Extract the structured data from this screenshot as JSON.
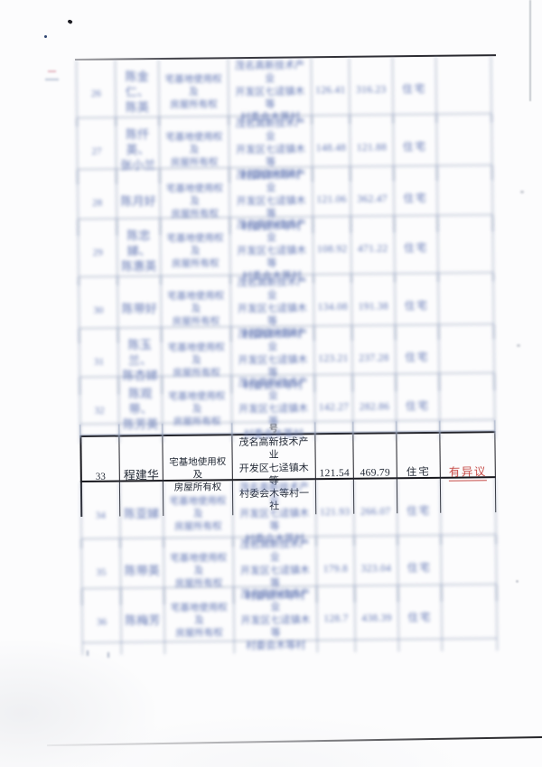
{
  "document": {
    "kind": "scanned-register-table",
    "note_colors": {
      "objection_red": "#c64a46",
      "focused_text": "#232a36",
      "blurred_text": "#5f74b2",
      "blurred_border": "#97a3bd",
      "sharp_border": "#17171d"
    }
  },
  "table": {
    "overflow_char": "号",
    "rows": [
      {
        "seq": "26",
        "name": "陈金仁、\n陈英",
        "rights": "宅基地使用权及\n房屋所有权",
        "location": "茂名高新技术产业\n开发区七迳镇木等\n村委会木等村",
        "area1": "126.41",
        "area2": "316.23",
        "use": "住宅",
        "remark": ""
      },
      {
        "seq": "27",
        "name": "陈仟英、\n张小兰",
        "rights": "宅基地使用权及\n房屋所有权",
        "location": "茂名高新技术产业\n开发区七迳镇木等\n村委会木等村",
        "area1": "148.48",
        "area2": "121.88",
        "use": "住宅",
        "remark": ""
      },
      {
        "seq": "28",
        "name": "陈月好",
        "rights": "宅基地使用权及\n房屋所有权",
        "location": "茂名高新技术产业\n开发区七迳镇木等\n村委会木等村",
        "area1": "121.06",
        "area2": "362.47",
        "use": "住宅",
        "remark": ""
      },
      {
        "seq": "29",
        "name": "陈忠娣、\n陈惠英",
        "rights": "宅基地使用权及\n房屋所有权",
        "location": "茂名高新技术产业\n开发区七迳镇木等\n村委会木等村",
        "area1": "108.92",
        "area2": "471.22",
        "use": "住宅",
        "remark": ""
      },
      {
        "seq": "30",
        "name": "陈带好",
        "rights": "宅基地使用权及\n房屋所有权",
        "location": "茂名高新技术产业\n开发区七迳镇木等\n村委会木等村",
        "area1": "134.08",
        "area2": "191.38",
        "use": "住宅",
        "remark": ""
      },
      {
        "seq": "31",
        "name": "陈玉兰、\n陈杏娣",
        "rights": "宅基地使用权及\n房屋所有权",
        "location": "茂名高新技术产业\n开发区七迳镇木等\n村委会木等村",
        "area1": "123.21",
        "area2": "237.28",
        "use": "住宅",
        "remark": ""
      },
      {
        "seq": "32",
        "name": "陈观带、\n陈芳英",
        "rights": "宅基地使用权及\n房屋所有权",
        "location": "茂名高新技术产业\n开发区七迳镇木等\n村委会木等村",
        "area1": "142.27",
        "area2": "282.86",
        "use": "住宅",
        "remark": ""
      },
      {
        "seq": "33",
        "name": "程建华",
        "rights": "宅基地使用权及\n房屋所有权",
        "location": "茂名高新技术产业\n开发区七迳镇木等\n村委会木等村一社",
        "area1": "121.54",
        "area2": "469.79",
        "use": "住宅",
        "remark": "有异议"
      },
      {
        "seq": "34",
        "name": "陈亚娣",
        "rights": "宅基地使用权及\n房屋所有权",
        "location": "茂名高新技术产业\n开发区七迳镇木等\n村委会木等村",
        "area1": "121.93",
        "area2": "266.07",
        "use": "住宅",
        "remark": ""
      },
      {
        "seq": "35",
        "name": "陈带英",
        "rights": "宅基地使用权及\n房屋所有权",
        "location": "茂名高新技术产业\n开发区七迳镇木等\n村委会木等村",
        "area1": "179.8",
        "area2": "323.04",
        "use": "住宅",
        "remark": ""
      },
      {
        "seq": "36",
        "name": "陈梅芳",
        "rights": "宅基地使用权及\n房屋所有权",
        "location": "茂名高新技术产业\n开发区七迳镇木等\n村委会木等村",
        "area1": "128.7",
        "area2": "438.39",
        "use": "住宅",
        "remark": ""
      }
    ]
  }
}
